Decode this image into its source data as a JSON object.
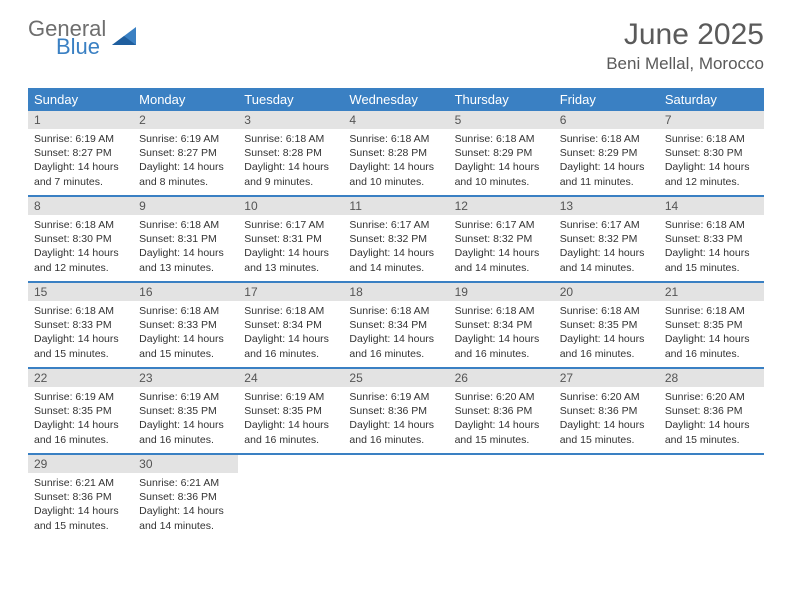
{
  "logo": {
    "text1": "General",
    "text2": "Blue",
    "accent": "#3a80c3",
    "gray": "#6e6e6e"
  },
  "title": "June 2025",
  "location": "Beni Mellal, Morocco",
  "dow_bg": "#3a80c3",
  "daynum_bg": "#e3e3e3",
  "dow": [
    "Sunday",
    "Monday",
    "Tuesday",
    "Wednesday",
    "Thursday",
    "Friday",
    "Saturday"
  ],
  "days": [
    {
      "n": 1,
      "sr": "6:19 AM",
      "ss": "8:27 PM",
      "dl": "14 hours and 7 minutes."
    },
    {
      "n": 2,
      "sr": "6:19 AM",
      "ss": "8:27 PM",
      "dl": "14 hours and 8 minutes."
    },
    {
      "n": 3,
      "sr": "6:18 AM",
      "ss": "8:28 PM",
      "dl": "14 hours and 9 minutes."
    },
    {
      "n": 4,
      "sr": "6:18 AM",
      "ss": "8:28 PM",
      "dl": "14 hours and 10 minutes."
    },
    {
      "n": 5,
      "sr": "6:18 AM",
      "ss": "8:29 PM",
      "dl": "14 hours and 10 minutes."
    },
    {
      "n": 6,
      "sr": "6:18 AM",
      "ss": "8:29 PM",
      "dl": "14 hours and 11 minutes."
    },
    {
      "n": 7,
      "sr": "6:18 AM",
      "ss": "8:30 PM",
      "dl": "14 hours and 12 minutes."
    },
    {
      "n": 8,
      "sr": "6:18 AM",
      "ss": "8:30 PM",
      "dl": "14 hours and 12 minutes."
    },
    {
      "n": 9,
      "sr": "6:18 AM",
      "ss": "8:31 PM",
      "dl": "14 hours and 13 minutes."
    },
    {
      "n": 10,
      "sr": "6:17 AM",
      "ss": "8:31 PM",
      "dl": "14 hours and 13 minutes."
    },
    {
      "n": 11,
      "sr": "6:17 AM",
      "ss": "8:32 PM",
      "dl": "14 hours and 14 minutes."
    },
    {
      "n": 12,
      "sr": "6:17 AM",
      "ss": "8:32 PM",
      "dl": "14 hours and 14 minutes."
    },
    {
      "n": 13,
      "sr": "6:17 AM",
      "ss": "8:32 PM",
      "dl": "14 hours and 14 minutes."
    },
    {
      "n": 14,
      "sr": "6:18 AM",
      "ss": "8:33 PM",
      "dl": "14 hours and 15 minutes."
    },
    {
      "n": 15,
      "sr": "6:18 AM",
      "ss": "8:33 PM",
      "dl": "14 hours and 15 minutes."
    },
    {
      "n": 16,
      "sr": "6:18 AM",
      "ss": "8:33 PM",
      "dl": "14 hours and 15 minutes."
    },
    {
      "n": 17,
      "sr": "6:18 AM",
      "ss": "8:34 PM",
      "dl": "14 hours and 16 minutes."
    },
    {
      "n": 18,
      "sr": "6:18 AM",
      "ss": "8:34 PM",
      "dl": "14 hours and 16 minutes."
    },
    {
      "n": 19,
      "sr": "6:18 AM",
      "ss": "8:34 PM",
      "dl": "14 hours and 16 minutes."
    },
    {
      "n": 20,
      "sr": "6:18 AM",
      "ss": "8:35 PM",
      "dl": "14 hours and 16 minutes."
    },
    {
      "n": 21,
      "sr": "6:18 AM",
      "ss": "8:35 PM",
      "dl": "14 hours and 16 minutes."
    },
    {
      "n": 22,
      "sr": "6:19 AM",
      "ss": "8:35 PM",
      "dl": "14 hours and 16 minutes."
    },
    {
      "n": 23,
      "sr": "6:19 AM",
      "ss": "8:35 PM",
      "dl": "14 hours and 16 minutes."
    },
    {
      "n": 24,
      "sr": "6:19 AM",
      "ss": "8:35 PM",
      "dl": "14 hours and 16 minutes."
    },
    {
      "n": 25,
      "sr": "6:19 AM",
      "ss": "8:36 PM",
      "dl": "14 hours and 16 minutes."
    },
    {
      "n": 26,
      "sr": "6:20 AM",
      "ss": "8:36 PM",
      "dl": "14 hours and 15 minutes."
    },
    {
      "n": 27,
      "sr": "6:20 AM",
      "ss": "8:36 PM",
      "dl": "14 hours and 15 minutes."
    },
    {
      "n": 28,
      "sr": "6:20 AM",
      "ss": "8:36 PM",
      "dl": "14 hours and 15 minutes."
    },
    {
      "n": 29,
      "sr": "6:21 AM",
      "ss": "8:36 PM",
      "dl": "14 hours and 15 minutes."
    },
    {
      "n": 30,
      "sr": "6:21 AM",
      "ss": "8:36 PM",
      "dl": "14 hours and 14 minutes."
    }
  ],
  "labels": {
    "sunrise": "Sunrise:",
    "sunset": "Sunset:",
    "daylight": "Daylight:"
  }
}
